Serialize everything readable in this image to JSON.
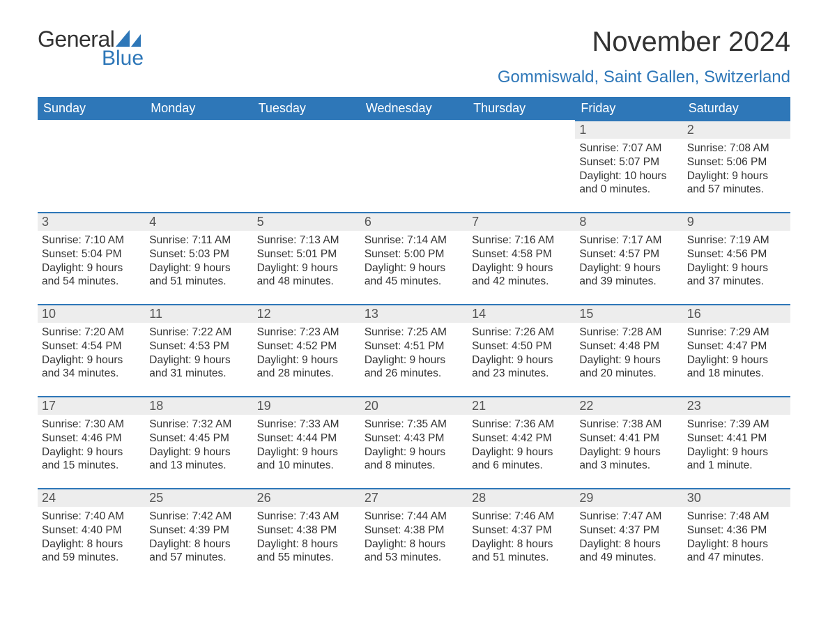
{
  "brand": {
    "part1": "General",
    "part2": "Blue",
    "accent_color": "#2e77b8"
  },
  "title": "November 2024",
  "location": "Gommiswald, Saint Gallen, Switzerland",
  "colors": {
    "header_bg": "#2e77b8",
    "header_text": "#ffffff",
    "daynum_bg": "#ededed",
    "daynum_border": "#2e77b8",
    "body_text": "#333333",
    "background": "#ffffff"
  },
  "fonts": {
    "title_pt": 40,
    "location_pt": 24,
    "header_pt": 18,
    "daynum_pt": 18,
    "body_pt": 15.5
  },
  "week_header": [
    "Sunday",
    "Monday",
    "Tuesday",
    "Wednesday",
    "Thursday",
    "Friday",
    "Saturday"
  ],
  "weeks": [
    [
      null,
      null,
      null,
      null,
      null,
      {
        "day": "1",
        "sunrise": "7:07 AM",
        "sunset": "5:07 PM",
        "daylight": "10 hours and 0 minutes."
      },
      {
        "day": "2",
        "sunrise": "7:08 AM",
        "sunset": "5:06 PM",
        "daylight": "9 hours and 57 minutes."
      }
    ],
    [
      {
        "day": "3",
        "sunrise": "7:10 AM",
        "sunset": "5:04 PM",
        "daylight": "9 hours and 54 minutes."
      },
      {
        "day": "4",
        "sunrise": "7:11 AM",
        "sunset": "5:03 PM",
        "daylight": "9 hours and 51 minutes."
      },
      {
        "day": "5",
        "sunrise": "7:13 AM",
        "sunset": "5:01 PM",
        "daylight": "9 hours and 48 minutes."
      },
      {
        "day": "6",
        "sunrise": "7:14 AM",
        "sunset": "5:00 PM",
        "daylight": "9 hours and 45 minutes."
      },
      {
        "day": "7",
        "sunrise": "7:16 AM",
        "sunset": "4:58 PM",
        "daylight": "9 hours and 42 minutes."
      },
      {
        "day": "8",
        "sunrise": "7:17 AM",
        "sunset": "4:57 PM",
        "daylight": "9 hours and 39 minutes."
      },
      {
        "day": "9",
        "sunrise": "7:19 AM",
        "sunset": "4:56 PM",
        "daylight": "9 hours and 37 minutes."
      }
    ],
    [
      {
        "day": "10",
        "sunrise": "7:20 AM",
        "sunset": "4:54 PM",
        "daylight": "9 hours and 34 minutes."
      },
      {
        "day": "11",
        "sunrise": "7:22 AM",
        "sunset": "4:53 PM",
        "daylight": "9 hours and 31 minutes."
      },
      {
        "day": "12",
        "sunrise": "7:23 AM",
        "sunset": "4:52 PM",
        "daylight": "9 hours and 28 minutes."
      },
      {
        "day": "13",
        "sunrise": "7:25 AM",
        "sunset": "4:51 PM",
        "daylight": "9 hours and 26 minutes."
      },
      {
        "day": "14",
        "sunrise": "7:26 AM",
        "sunset": "4:50 PM",
        "daylight": "9 hours and 23 minutes."
      },
      {
        "day": "15",
        "sunrise": "7:28 AM",
        "sunset": "4:48 PM",
        "daylight": "9 hours and 20 minutes."
      },
      {
        "day": "16",
        "sunrise": "7:29 AM",
        "sunset": "4:47 PM",
        "daylight": "9 hours and 18 minutes."
      }
    ],
    [
      {
        "day": "17",
        "sunrise": "7:30 AM",
        "sunset": "4:46 PM",
        "daylight": "9 hours and 15 minutes."
      },
      {
        "day": "18",
        "sunrise": "7:32 AM",
        "sunset": "4:45 PM",
        "daylight": "9 hours and 13 minutes."
      },
      {
        "day": "19",
        "sunrise": "7:33 AM",
        "sunset": "4:44 PM",
        "daylight": "9 hours and 10 minutes."
      },
      {
        "day": "20",
        "sunrise": "7:35 AM",
        "sunset": "4:43 PM",
        "daylight": "9 hours and 8 minutes."
      },
      {
        "day": "21",
        "sunrise": "7:36 AM",
        "sunset": "4:42 PM",
        "daylight": "9 hours and 6 minutes."
      },
      {
        "day": "22",
        "sunrise": "7:38 AM",
        "sunset": "4:41 PM",
        "daylight": "9 hours and 3 minutes."
      },
      {
        "day": "23",
        "sunrise": "7:39 AM",
        "sunset": "4:41 PM",
        "daylight": "9 hours and 1 minute."
      }
    ],
    [
      {
        "day": "24",
        "sunrise": "7:40 AM",
        "sunset": "4:40 PM",
        "daylight": "8 hours and 59 minutes."
      },
      {
        "day": "25",
        "sunrise": "7:42 AM",
        "sunset": "4:39 PM",
        "daylight": "8 hours and 57 minutes."
      },
      {
        "day": "26",
        "sunrise": "7:43 AM",
        "sunset": "4:38 PM",
        "daylight": "8 hours and 55 minutes."
      },
      {
        "day": "27",
        "sunrise": "7:44 AM",
        "sunset": "4:38 PM",
        "daylight": "8 hours and 53 minutes."
      },
      {
        "day": "28",
        "sunrise": "7:46 AM",
        "sunset": "4:37 PM",
        "daylight": "8 hours and 51 minutes."
      },
      {
        "day": "29",
        "sunrise": "7:47 AM",
        "sunset": "4:37 PM",
        "daylight": "8 hours and 49 minutes."
      },
      {
        "day": "30",
        "sunrise": "7:48 AM",
        "sunset": "4:36 PM",
        "daylight": "8 hours and 47 minutes."
      }
    ]
  ],
  "labels": {
    "sunrise": "Sunrise: ",
    "sunset": "Sunset: ",
    "daylight": "Daylight: "
  }
}
